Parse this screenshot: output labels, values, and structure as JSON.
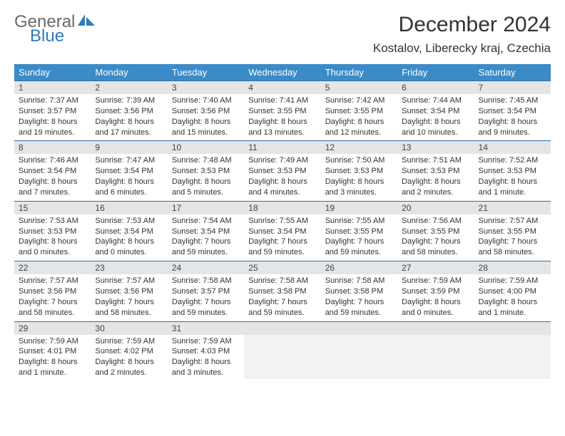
{
  "logo": {
    "line1": "General",
    "line2": "Blue",
    "accent_color": "#2f7bbf",
    "gray_color": "#6a6a6a"
  },
  "header": {
    "title": "December 2024",
    "location": "Kostalov, Liberecky kraj, Czechia"
  },
  "colors": {
    "header_bg": "#3b8bc8",
    "row_border": "#2f6fa8",
    "daynum_bg": "#e5e5e5",
    "empty_body_bg": "#f2f2f2"
  },
  "weekdays": [
    "Sunday",
    "Monday",
    "Tuesday",
    "Wednesday",
    "Thursday",
    "Friday",
    "Saturday"
  ],
  "days": [
    {
      "n": 1,
      "sunrise": "7:37 AM",
      "sunset": "3:57 PM",
      "daylight": "8 hours and 19 minutes."
    },
    {
      "n": 2,
      "sunrise": "7:39 AM",
      "sunset": "3:56 PM",
      "daylight": "8 hours and 17 minutes."
    },
    {
      "n": 3,
      "sunrise": "7:40 AM",
      "sunset": "3:56 PM",
      "daylight": "8 hours and 15 minutes."
    },
    {
      "n": 4,
      "sunrise": "7:41 AM",
      "sunset": "3:55 PM",
      "daylight": "8 hours and 13 minutes."
    },
    {
      "n": 5,
      "sunrise": "7:42 AM",
      "sunset": "3:55 PM",
      "daylight": "8 hours and 12 minutes."
    },
    {
      "n": 6,
      "sunrise": "7:44 AM",
      "sunset": "3:54 PM",
      "daylight": "8 hours and 10 minutes."
    },
    {
      "n": 7,
      "sunrise": "7:45 AM",
      "sunset": "3:54 PM",
      "daylight": "8 hours and 9 minutes."
    },
    {
      "n": 8,
      "sunrise": "7:46 AM",
      "sunset": "3:54 PM",
      "daylight": "8 hours and 7 minutes."
    },
    {
      "n": 9,
      "sunrise": "7:47 AM",
      "sunset": "3:54 PM",
      "daylight": "8 hours and 6 minutes."
    },
    {
      "n": 10,
      "sunrise": "7:48 AM",
      "sunset": "3:53 PM",
      "daylight": "8 hours and 5 minutes."
    },
    {
      "n": 11,
      "sunrise": "7:49 AM",
      "sunset": "3:53 PM",
      "daylight": "8 hours and 4 minutes."
    },
    {
      "n": 12,
      "sunrise": "7:50 AM",
      "sunset": "3:53 PM",
      "daylight": "8 hours and 3 minutes."
    },
    {
      "n": 13,
      "sunrise": "7:51 AM",
      "sunset": "3:53 PM",
      "daylight": "8 hours and 2 minutes."
    },
    {
      "n": 14,
      "sunrise": "7:52 AM",
      "sunset": "3:53 PM",
      "daylight": "8 hours and 1 minute."
    },
    {
      "n": 15,
      "sunrise": "7:53 AM",
      "sunset": "3:53 PM",
      "daylight": "8 hours and 0 minutes."
    },
    {
      "n": 16,
      "sunrise": "7:53 AM",
      "sunset": "3:54 PM",
      "daylight": "8 hours and 0 minutes."
    },
    {
      "n": 17,
      "sunrise": "7:54 AM",
      "sunset": "3:54 PM",
      "daylight": "7 hours and 59 minutes."
    },
    {
      "n": 18,
      "sunrise": "7:55 AM",
      "sunset": "3:54 PM",
      "daylight": "7 hours and 59 minutes."
    },
    {
      "n": 19,
      "sunrise": "7:55 AM",
      "sunset": "3:55 PM",
      "daylight": "7 hours and 59 minutes."
    },
    {
      "n": 20,
      "sunrise": "7:56 AM",
      "sunset": "3:55 PM",
      "daylight": "7 hours and 58 minutes."
    },
    {
      "n": 21,
      "sunrise": "7:57 AM",
      "sunset": "3:55 PM",
      "daylight": "7 hours and 58 minutes."
    },
    {
      "n": 22,
      "sunrise": "7:57 AM",
      "sunset": "3:56 PM",
      "daylight": "7 hours and 58 minutes."
    },
    {
      "n": 23,
      "sunrise": "7:57 AM",
      "sunset": "3:56 PM",
      "daylight": "7 hours and 58 minutes."
    },
    {
      "n": 24,
      "sunrise": "7:58 AM",
      "sunset": "3:57 PM",
      "daylight": "7 hours and 59 minutes."
    },
    {
      "n": 25,
      "sunrise": "7:58 AM",
      "sunset": "3:58 PM",
      "daylight": "7 hours and 59 minutes."
    },
    {
      "n": 26,
      "sunrise": "7:58 AM",
      "sunset": "3:58 PM",
      "daylight": "7 hours and 59 minutes."
    },
    {
      "n": 27,
      "sunrise": "7:59 AM",
      "sunset": "3:59 PM",
      "daylight": "8 hours and 0 minutes."
    },
    {
      "n": 28,
      "sunrise": "7:59 AM",
      "sunset": "4:00 PM",
      "daylight": "8 hours and 1 minute."
    },
    {
      "n": 29,
      "sunrise": "7:59 AM",
      "sunset": "4:01 PM",
      "daylight": "8 hours and 1 minute."
    },
    {
      "n": 30,
      "sunrise": "7:59 AM",
      "sunset": "4:02 PM",
      "daylight": "8 hours and 2 minutes."
    },
    {
      "n": 31,
      "sunrise": "7:59 AM",
      "sunset": "4:03 PM",
      "daylight": "8 hours and 3 minutes."
    }
  ],
  "labels": {
    "sunrise_prefix": "Sunrise: ",
    "sunset_prefix": "Sunset: ",
    "daylight_prefix": "Daylight: "
  },
  "layout": {
    "start_weekday": 0,
    "trailing_empty": 4
  }
}
